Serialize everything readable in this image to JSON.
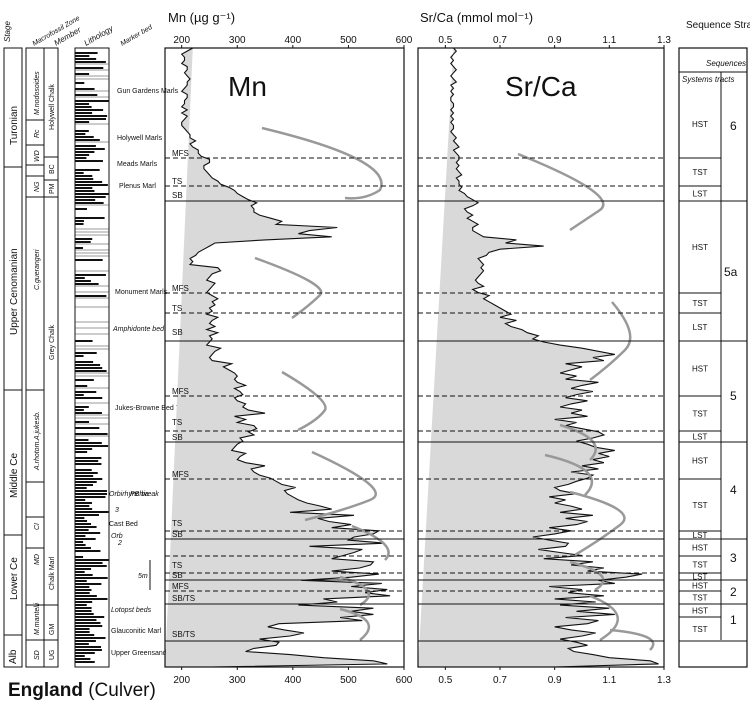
{
  "footer": {
    "region": "England",
    "locality": "(Culver)"
  },
  "headers": {
    "stage": "Stage",
    "macrofossil_zone": "Macrofossil Zone",
    "member": "Member",
    "lithology": "Lithology",
    "marker_bed": "Marker bed",
    "sequence_stratigraphy": "Sequence Stratigraphy",
    "sequences": "Sequences",
    "systems_tracts": "Systems tracts"
  },
  "stages": [
    {
      "label": "Alb"
    },
    {
      "label": "Lower Ce"
    },
    {
      "label": "Middle Ce"
    },
    {
      "label": "Upper Cenomanian"
    },
    {
      "label": "Turonian"
    }
  ],
  "zones": [
    {
      "label": "SD"
    },
    {
      "label": "M.mantelli"
    },
    {
      "label": "MD"
    },
    {
      "label": "CI"
    },
    {
      "label": "A.rhotom."
    },
    {
      "label": "A.jukesb."
    },
    {
      "label": "C.guerangeri"
    },
    {
      "label": "NG"
    },
    {
      "label": "WD"
    },
    {
      "label": "Rc"
    },
    {
      "label": "M.nodosoides"
    }
  ],
  "members": [
    {
      "label": "UG"
    },
    {
      "label": "GM"
    },
    {
      "label": "Chalk Marl"
    },
    {
      "label": "Grey Chalk"
    },
    {
      "label": "PM"
    },
    {
      "label": "BC"
    },
    {
      "label": "Holywell Chalk"
    }
  ],
  "marker_beds": [
    {
      "label": "Gun Gardens Marls"
    },
    {
      "label": "Holywell Marls"
    },
    {
      "label": "Meads Marls"
    },
    {
      "label": "Plenus Marl"
    },
    {
      "label": "Monument Marls"
    },
    {
      "label": "Amphidonte bed"
    },
    {
      "label": "Jukes-Browne Bed 7"
    },
    {
      "label": "Orbirhynchia"
    },
    {
      "label": "Cast Bed"
    },
    {
      "label": "Lotopst beds"
    },
    {
      "label": "Glauconitic Marl"
    },
    {
      "label": "Upper Greensand"
    }
  ],
  "marker_bed_extras": {
    "mb_3": "3",
    "mb_2": "2",
    "mb_break": "PB break",
    "mb_scale": "5m",
    "mb_orb": "Orb"
  },
  "surface_labels": {
    "mfs": "MFS",
    "ts": "TS",
    "sb": "SB",
    "sbts": "SB/TS"
  },
  "systems_tracts": [
    "HST",
    "TST",
    "LST",
    "HST",
    "TST",
    "LST",
    "HST",
    "TST",
    "LST",
    "HST",
    "TST",
    "LST",
    "HST",
    "TST",
    "LST",
    "HST",
    "TST",
    "HST",
    "TST"
  ],
  "sequence_numbers": [
    "6",
    "5a",
    "5",
    "4",
    "3",
    "2",
    "1"
  ],
  "chart_data": [
    {
      "type": "line",
      "title": "Mn",
      "xlabel": "Mn (µg g⁻¹)",
      "ylabel": "",
      "x_ticks": [
        "200",
        "300",
        "400",
        "500",
        "600"
      ],
      "xlim": [
        170,
        600
      ],
      "fill": "grey area left of curve",
      "series": [
        {
          "depth_position": [
            0,
            0.5,
            1,
            1.5,
            2,
            2.5,
            3,
            3.5,
            4,
            4.5,
            5,
            5.5,
            6,
            6.5,
            7,
            7.5,
            8,
            8.5,
            9,
            9.5,
            10,
            10.5,
            11,
            11.5,
            12,
            12.5,
            13,
            13.5,
            14,
            14.5,
            15,
            15.5,
            16,
            16.5,
            17,
            17.5,
            18,
            18.5,
            19,
            19.5,
            20,
            20.5,
            21,
            21.5,
            22,
            22.5,
            23,
            23.5,
            24,
            24.5,
            25,
            25.5,
            26,
            26.5,
            27,
            27.5,
            28,
            28.5,
            29,
            29.5,
            30,
            30.5,
            31,
            31.5,
            32,
            32.5,
            33,
            33.5,
            34,
            34.5,
            35,
            35.5,
            36,
            36.5,
            37,
            37.5,
            38,
            38.5,
            39,
            39.5,
            40,
            40.5,
            41,
            41.5,
            42,
            42.5,
            43,
            43.5,
            44,
            44.5,
            45,
            45.5,
            46,
            46.5,
            47,
            47.5,
            48,
            48.5,
            49,
            49.5,
            50,
            50.5,
            51,
            51.5,
            52,
            52.5,
            53,
            53.5,
            54,
            54.5,
            55,
            55.5,
            56,
            56.5,
            57,
            57.5,
            58,
            58.5,
            59,
            59.5,
            60,
            60.5,
            61,
            61.5,
            62,
            62.5,
            63,
            63.5,
            64,
            64.5,
            65,
            65.5,
            66,
            66.5,
            67,
            67.5,
            68,
            68.5,
            69,
            69.5,
            70,
            70.5,
            71,
            71.5,
            72,
            72.5,
            73,
            73.5,
            74,
            74.5,
            75,
            75.5,
            76,
            76.5,
            77,
            77.5,
            78,
            78.5,
            79,
            79.5,
            80,
            80.5,
            81,
            81.5,
            82,
            82.5,
            83,
            83.5,
            84,
            84.5,
            85,
            85.5,
            86,
            86.5,
            87,
            87.5,
            88,
            88.5,
            89,
            89.5,
            90,
            90.5,
            91,
            91.5,
            92,
            92.5,
            93,
            93.5,
            94,
            94.5,
            95,
            95.5,
            96,
            96.5,
            97,
            97.5,
            98,
            98.5,
            99,
            99.5,
            100
          ],
          "values": [
            255,
            570,
            545,
            455,
            395,
            315,
            330,
            370,
            375,
            340,
            395,
            420,
            385,
            355,
            375,
            525,
            485,
            545,
            505,
            545,
            410,
            480,
            455,
            575,
            530,
            570,
            505,
            560,
            415,
            505,
            555,
            470,
            520,
            540,
            545,
            470,
            490,
            510,
            525,
            430,
            565,
            500,
            510,
            545,
            555,
            470,
            505,
            465,
            445,
            510,
            395,
            470,
            450,
            425,
            410,
            400,
            390,
            385,
            405,
            380,
            370,
            360,
            340,
            330,
            325,
            350,
            315,
            300,
            305,
            315,
            290,
            295,
            300,
            310,
            305,
            330,
            320,
            335,
            330,
            300,
            315,
            295,
            350,
            320,
            310,
            315,
            300,
            295,
            310,
            305,
            295,
            315,
            300,
            295,
            300,
            295,
            285,
            275,
            290,
            255,
            250,
            255,
            260,
            270,
            245,
            250,
            255,
            250,
            265,
            245,
            260,
            250,
            255,
            265,
            245,
            255,
            250,
            260,
            255,
            265,
            255,
            245,
            250,
            255,
            260,
            245,
            250,
            255,
            270,
            265,
            215,
            220,
            215,
            225,
            230,
            240,
            250,
            260,
            350,
            470,
            410,
            430,
            480,
            370,
            380,
            360,
            340,
            330,
            330,
            325,
            335,
            320,
            310,
            300,
            295,
            285,
            270,
            265,
            255,
            250,
            245,
            240,
            240,
            250,
            250,
            235,
            230,
            230,
            220,
            215,
            225,
            215,
            215,
            210,
            205,
            200,
            200,
            205,
            210,
            200,
            210,
            200,
            205,
            205,
            210,
            210,
            200,
            205,
            210,
            210,
            215,
            210,
            205,
            210,
            210,
            200,
            205,
            205,
            200,
            210,
            220,
            230,
            195
          ]
        }
      ]
    },
    {
      "type": "line",
      "title": "Sr/Ca",
      "xlabel": "Sr/Ca (mmol mol⁻¹)",
      "ylabel": "",
      "x_ticks": [
        "0.5",
        "0.7",
        "0.9",
        "1.1",
        "1.3"
      ],
      "xlim": [
        0.4,
        1.3
      ],
      "fill": "grey area left of curve",
      "series": [
        {
          "depth_position": [
            0,
            0.5,
            1,
            1.5,
            2,
            2.5,
            3,
            3.5,
            4,
            4.5,
            5,
            5.5,
            6,
            6.5,
            7,
            7.5,
            8,
            8.5,
            9,
            9.5,
            10,
            10.5,
            11,
            11.5,
            12,
            12.5,
            13,
            13.5,
            14,
            14.5,
            15,
            15.5,
            16,
            16.5,
            17,
            17.5,
            18,
            18.5,
            19,
            19.5,
            20,
            20.5,
            21,
            21.5,
            22,
            22.5,
            23,
            23.5,
            24,
            24.5,
            25,
            25.5,
            26,
            26.5,
            27,
            27.5,
            28,
            28.5,
            29,
            29.5,
            30,
            30.5,
            31,
            31.5,
            32,
            32.5,
            33,
            33.5,
            34,
            34.5,
            35,
            35.5,
            36,
            36.5,
            37,
            37.5,
            38,
            38.5,
            39,
            39.5,
            40,
            40.5,
            41,
            41.5,
            42,
            42.5,
            43,
            43.5,
            44,
            44.5,
            45,
            45.5,
            46,
            46.5,
            47,
            47.5,
            48,
            48.5,
            49,
            49.5,
            50,
            50.5,
            51,
            51.5,
            52,
            52.5,
            53,
            53.5,
            54,
            54.5,
            55,
            55.5,
            56,
            56.5,
            57,
            57.5,
            58,
            58.5,
            59,
            59.5,
            60,
            60.5,
            61,
            61.5,
            62,
            62.5,
            63,
            63.5,
            64,
            64.5,
            65,
            65.5,
            66,
            66.5,
            67,
            67.5,
            68,
            68.5,
            69,
            69.5,
            70,
            70.5,
            71,
            71.5,
            72,
            72.5,
            73,
            73.5,
            74,
            74.5,
            75,
            75.5,
            76,
            76.5,
            77,
            77.5,
            78,
            78.5,
            79,
            79.5,
            80,
            80.5,
            81,
            81.5,
            82,
            82.5,
            83,
            83.5,
            84,
            84.5,
            85,
            85.5,
            86,
            86.5,
            87,
            87.5,
            88,
            88.5,
            89,
            89.5,
            90,
            90.5,
            91,
            91.5,
            92,
            92.5,
            93,
            93.5,
            94,
            94.5,
            95,
            95.5,
            96,
            96.5,
            97,
            97.5,
            98,
            98.5,
            99,
            99.5,
            100
          ],
          "values": [
            0.9,
            1.28,
            1.25,
            1.1,
            1.04,
            0.97,
            0.95,
            1.02,
            0.98,
            0.92,
            1.0,
            1.05,
            0.96,
            0.9,
            1.02,
            1.06,
            0.94,
            1.12,
            0.98,
            1.1,
            0.92,
            1.05,
            0.9,
            1.08,
            0.95,
            1.0,
            0.88,
            1.12,
            1.06,
            1.16,
            1.22,
            1.02,
            1.08,
            0.96,
            1.04,
            0.86,
            1.0,
            0.92,
            0.84,
            0.94,
            0.95,
            0.88,
            0.82,
            0.9,
            0.96,
            0.88,
            0.98,
            1.02,
            0.94,
            1.04,
            0.92,
            1.0,
            0.96,
            0.9,
            0.94,
            0.88,
            0.98,
            0.92,
            0.9,
            0.95,
            0.98,
            1.02,
            1.04,
            0.96,
            1.06,
            1.0,
            1.08,
            1.04,
            1.1,
            1.06,
            1.12,
            1.05,
            1.02,
            0.98,
            1.04,
            1.08,
            1.06,
            1.0,
            0.94,
            0.98,
            0.9,
            1.02,
            0.96,
            1.0,
            0.92,
            0.96,
            1.02,
            0.94,
            0.98,
            1.04,
            0.96,
            1.0,
            1.06,
            0.94,
            0.98,
            0.92,
            0.96,
            1.0,
            0.94,
            1.08,
            1.04,
            1.12,
            1.06,
            1.0,
            0.92,
            0.86,
            0.82,
            0.84,
            0.8,
            0.78,
            0.74,
            0.72,
            0.76,
            0.7,
            0.74,
            0.72,
            0.7,
            0.68,
            0.66,
            0.64,
            0.66,
            0.62,
            0.6,
            0.64,
            0.62,
            0.61,
            0.62,
            0.63,
            0.64,
            0.63,
            0.64,
            0.63,
            0.62,
            0.65,
            0.66,
            0.7,
            0.86,
            0.72,
            0.76,
            0.64,
            0.62,
            0.6,
            0.6,
            0.62,
            0.6,
            0.58,
            0.6,
            0.58,
            0.57,
            0.6,
            0.62,
            0.6,
            0.58,
            0.57,
            0.55,
            0.56,
            0.55,
            0.55,
            0.54,
            0.56,
            0.55,
            0.54,
            0.55,
            0.54,
            0.55,
            0.55,
            0.54,
            0.53,
            0.55,
            0.54,
            0.53,
            0.54,
            0.53,
            0.52,
            0.53,
            0.53,
            0.52,
            0.53,
            0.52,
            0.53,
            0.52,
            0.53,
            0.53,
            0.52,
            0.52,
            0.53,
            0.52,
            0.53,
            0.52,
            0.54,
            0.53,
            0.52,
            0.53,
            0.54,
            0.53,
            0.52,
            0.53,
            0.52,
            0.53,
            0.54,
            0.53,
            0.53,
            0.52,
            0.53,
            0.55
          ]
        }
      ]
    }
  ]
}
